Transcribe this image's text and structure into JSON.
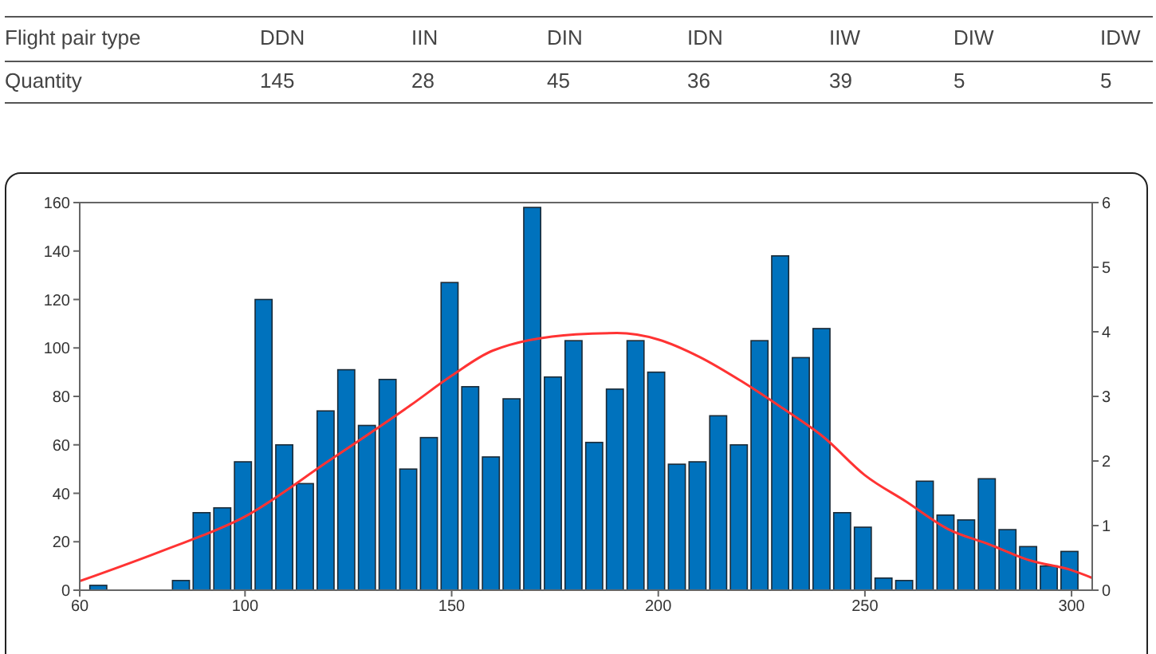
{
  "chart_data": [
    {
      "type": "other",
      "xlabel": "Flight pair type",
      "ylabel": "Quantity",
      "categories": [
        "DDN",
        "IIN",
        "DIN",
        "IDN",
        "IIW",
        "DIW",
        "IDW"
      ],
      "values": [
        145,
        28,
        45,
        36,
        39,
        5,
        5
      ],
      "data_labels": true
    },
    {
      "type": "histogram",
      "xlim": [
        60,
        305
      ],
      "xticks": [
        60,
        100,
        150,
        200,
        250,
        300
      ],
      "ylim": [
        0,
        160
      ],
      "yticks": [
        0,
        20,
        40,
        60,
        80,
        100,
        120,
        140,
        160
      ],
      "y2lim": [
        0,
        6
      ],
      "y2ticks": [
        0,
        1,
        2,
        3,
        4,
        5,
        6
      ],
      "series": [
        {
          "type": "histogram",
          "color": "#0072bd",
          "bins": [
            62,
            67,
            72,
            77,
            82,
            87,
            92,
            97,
            102,
            107,
            112,
            117,
            122,
            127,
            132,
            137,
            142,
            147,
            152,
            157,
            162,
            167,
            172,
            177,
            182,
            187,
            192,
            197,
            202,
            207,
            212,
            217,
            222,
            227,
            232,
            237,
            242,
            247,
            252,
            257,
            262,
            267,
            272,
            277,
            282,
            287,
            292,
            297,
            302
          ],
          "values": [
            2,
            0,
            0,
            0,
            4,
            32,
            34,
            53,
            120,
            60,
            44,
            74,
            91,
            68,
            87,
            50,
            63,
            127,
            84,
            55,
            79,
            158,
            88,
            103,
            61,
            83,
            103,
            90,
            52,
            53,
            72,
            60,
            103,
            138,
            96,
            108,
            32,
            26,
            5,
            4,
            45,
            31,
            29,
            46,
            25,
            18,
            10,
            16
          ]
        },
        {
          "type": "line",
          "axis": "y2",
          "color": "#ff3333",
          "x": [
            60,
            80,
            100,
            120,
            140,
            150,
            160,
            180,
            190,
            200,
            210,
            220,
            230,
            240,
            250,
            260,
            270,
            280,
            290,
            300,
            305
          ],
          "values": [
            0.14,
            0.61,
            1.14,
            1.99,
            2.86,
            3.32,
            3.71,
            3.96,
            3.98,
            3.88,
            3.61,
            3.24,
            2.82,
            2.37,
            1.78,
            1.37,
            0.95,
            0.71,
            0.46,
            0.31,
            0.19
          ]
        }
      ]
    }
  ]
}
